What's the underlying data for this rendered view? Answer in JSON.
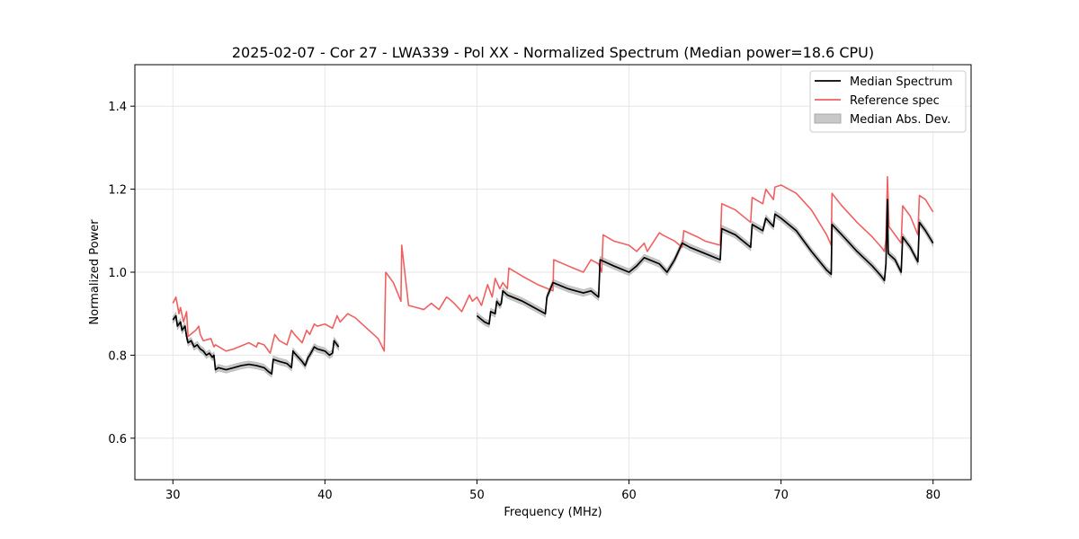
{
  "chart_data": {
    "type": "line",
    "title": "2025-02-07 - Cor 27 - LWA339 - Pol XX - Normalized Spectrum (Median power=18.6 CPU)",
    "xlabel": "Frequency (MHz)",
    "ylabel": "Normalized Power",
    "xlim": [
      27.5,
      82.5
    ],
    "ylim": [
      0.5,
      1.5
    ],
    "xticks": [
      30,
      40,
      50,
      60,
      70,
      80
    ],
    "yticks": [
      0.6,
      0.8,
      1.0,
      1.2,
      1.4
    ],
    "xtick_labels": [
      "30",
      "40",
      "50",
      "60",
      "70",
      "80"
    ],
    "ytick_labels": [
      "0.6",
      "0.8",
      "1.0",
      "1.2",
      "1.4"
    ],
    "grid": true,
    "legend_position": "top-right",
    "legend": [
      {
        "label": "Median Spectrum",
        "kind": "line",
        "color": "#000000"
      },
      {
        "label": "Reference spec",
        "kind": "line",
        "color": "#f06060"
      },
      {
        "label": "Median Abs. Dev.",
        "kind": "band",
        "color": "#c8c8c8"
      }
    ],
    "series": [
      {
        "name": "Reference spec",
        "color": "#f06060",
        "x": [
          30.0,
          30.2,
          30.4,
          30.5,
          30.7,
          30.9,
          31.0,
          31.5,
          31.7,
          31.8,
          32.0,
          32.5,
          32.7,
          32.8,
          33.5,
          34.0,
          35.0,
          35.5,
          35.6,
          36.0,
          36.4,
          36.7,
          37.0,
          37.5,
          37.8,
          38.0,
          38.5,
          38.8,
          39.0,
          39.3,
          39.5,
          40.0,
          40.5,
          40.8,
          41.0,
          41.5,
          42.0,
          43.5,
          43.9,
          44.0,
          44.5,
          45.0,
          45.05,
          45.5,
          46.0,
          46.5,
          47.0,
          47.5,
          48.0,
          48.2,
          48.5,
          49.0,
          49.5,
          49.7,
          50.0,
          50.3,
          50.7,
          51.0,
          51.2,
          51.5,
          51.7,
          52.0,
          52.1,
          53.0,
          54.0,
          55.0,
          55.05,
          56.0,
          57.0,
          57.5,
          58.0,
          58.2,
          58.3,
          59.0,
          60.0,
          60.5,
          61.0,
          61.2,
          62.0,
          62.2,
          63.0,
          63.5,
          63.6,
          64.5,
          65.0,
          66.0,
          66.1,
          67.0,
          68.0,
          68.1,
          68.8,
          69.0,
          69.5,
          69.6,
          70.0,
          71.0,
          72.0,
          73.0,
          73.3,
          73.35,
          74.0,
          75.0,
          76.0,
          76.6,
          76.8,
          76.9,
          77.0,
          77.1,
          77.5,
          77.9,
          78.0,
          78.5,
          79.0,
          79.1,
          79.5,
          80.0
        ],
        "y": [
          0.925,
          0.94,
          0.9,
          0.915,
          0.88,
          0.905,
          0.845,
          0.86,
          0.87,
          0.85,
          0.835,
          0.84,
          0.82,
          0.825,
          0.81,
          0.815,
          0.83,
          0.82,
          0.83,
          0.825,
          0.805,
          0.85,
          0.835,
          0.825,
          0.86,
          0.85,
          0.83,
          0.86,
          0.85,
          0.875,
          0.87,
          0.875,
          0.865,
          0.895,
          0.88,
          0.9,
          0.89,
          0.84,
          0.81,
          1.0,
          0.975,
          0.93,
          1.065,
          0.92,
          0.915,
          0.91,
          0.925,
          0.91,
          0.94,
          0.935,
          0.925,
          0.905,
          0.945,
          0.93,
          0.94,
          0.92,
          0.97,
          0.94,
          0.985,
          0.96,
          0.975,
          0.96,
          1.01,
          0.99,
          0.97,
          0.955,
          1.03,
          1.015,
          1.0,
          1.03,
          1.02,
          1.0,
          1.09,
          1.075,
          1.065,
          1.05,
          1.07,
          1.05,
          1.095,
          1.09,
          1.075,
          1.06,
          1.1,
          1.085,
          1.075,
          1.065,
          1.165,
          1.15,
          1.12,
          1.18,
          1.165,
          1.2,
          1.175,
          1.205,
          1.21,
          1.19,
          1.15,
          1.09,
          1.065,
          1.19,
          1.16,
          1.12,
          1.085,
          1.06,
          1.05,
          1.08,
          1.23,
          1.11,
          1.09,
          1.07,
          1.16,
          1.135,
          1.09,
          1.185,
          1.175,
          1.145
        ]
      },
      {
        "name": "Median Spectrum",
        "color": "#000000",
        "segments": [
          {
            "x": [
              30.0,
              30.2,
              30.3,
              30.5,
              30.6,
              30.8,
              30.9,
              31.0,
              31.2,
              31.4,
              31.6,
              31.8,
              32.0,
              32.2,
              32.4,
              32.6,
              32.7,
              32.8,
              33.0,
              33.5,
              34.0,
              34.5,
              35.0,
              35.5,
              36.0,
              36.3,
              36.5,
              36.6,
              37.0,
              37.5,
              37.8,
              37.9,
              38.0,
              38.5,
              38.7,
              38.9,
              39.0,
              39.3,
              39.5,
              40.0,
              40.3,
              40.5,
              40.6,
              40.9
            ],
            "y": [
              0.885,
              0.895,
              0.87,
              0.88,
              0.86,
              0.87,
              0.845,
              0.83,
              0.835,
              0.82,
              0.825,
              0.815,
              0.81,
              0.8,
              0.805,
              0.795,
              0.8,
              0.765,
              0.77,
              0.765,
              0.77,
              0.775,
              0.778,
              0.775,
              0.77,
              0.76,
              0.755,
              0.79,
              0.785,
              0.78,
              0.77,
              0.81,
              0.805,
              0.785,
              0.775,
              0.795,
              0.8,
              0.82,
              0.815,
              0.81,
              0.8,
              0.805,
              0.835,
              0.82
            ]
          },
          {
            "x": [
              50.0,
              50.5,
              50.8,
              50.9,
              51.2,
              51.3,
              51.5,
              51.6,
              51.7,
              52.0,
              53.0,
              54.0,
              54.5,
              54.6,
              55.0,
              56.0,
              57.0,
              57.5,
              58.0,
              58.1,
              59.0,
              60.0,
              60.5,
              61.0,
              62.0,
              62.5,
              63.0,
              63.5,
              64.0,
              65.0,
              66.0,
              66.1,
              67.0,
              68.0,
              68.1,
              68.8,
              69.0,
              69.5,
              69.6,
              70.0,
              71.0,
              72.0,
              73.0,
              73.3,
              73.35,
              74.0,
              75.0,
              76.0,
              76.6,
              76.8,
              76.9,
              77.0,
              77.05,
              77.5,
              77.9,
              78.0,
              78.5,
              79.0,
              79.1,
              79.5,
              80.0
            ],
            "y": [
              0.895,
              0.88,
              0.875,
              0.905,
              0.9,
              0.93,
              0.92,
              0.925,
              0.955,
              0.945,
              0.93,
              0.91,
              0.9,
              0.94,
              0.975,
              0.96,
              0.95,
              0.955,
              0.94,
              1.03,
              1.015,
              1.0,
              1.015,
              1.035,
              1.02,
              1.0,
              1.03,
              1.07,
              1.06,
              1.045,
              1.03,
              1.105,
              1.09,
              1.06,
              1.115,
              1.1,
              1.13,
              1.11,
              1.14,
              1.13,
              1.1,
              1.05,
              1.005,
              0.995,
              1.115,
              1.09,
              1.05,
              1.015,
              0.99,
              0.98,
              1.02,
              1.175,
              1.045,
              1.03,
              1.0,
              1.085,
              1.06,
              1.025,
              1.12,
              1.1,
              1.07
            ]
          }
        ]
      }
    ],
    "mad_band": {
      "name": "Median Abs. Dev.",
      "color": "#c8c8c8",
      "half_width": 0.008
    }
  }
}
